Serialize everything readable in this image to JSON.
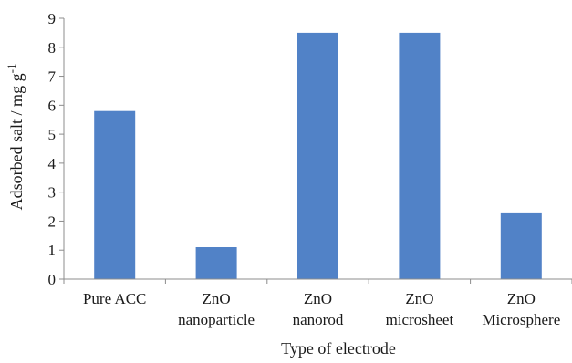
{
  "chart_data": {
    "type": "bar",
    "categories": [
      [
        "Pure ACC"
      ],
      [
        "ZnO",
        "nanoparticle"
      ],
      [
        "ZnO",
        "nanorod"
      ],
      [
        "ZnO",
        "microsheet"
      ],
      [
        "ZnO",
        "Microsphere"
      ]
    ],
    "values": [
      5.8,
      1.1,
      8.5,
      8.5,
      2.3
    ],
    "xlabel": "Type of electrode",
    "ylabel": "Adsorbed salt / mg g",
    "ylabel_superscript": "-1",
    "ylim": [
      0,
      9
    ],
    "yticks": [
      "0",
      "1",
      "2",
      "3",
      "4",
      "5",
      "6",
      "7",
      "8",
      "9"
    ],
    "grid": false,
    "legend": "none",
    "bar_color": "#5182c7",
    "axis_color": "#8c8c8c"
  }
}
